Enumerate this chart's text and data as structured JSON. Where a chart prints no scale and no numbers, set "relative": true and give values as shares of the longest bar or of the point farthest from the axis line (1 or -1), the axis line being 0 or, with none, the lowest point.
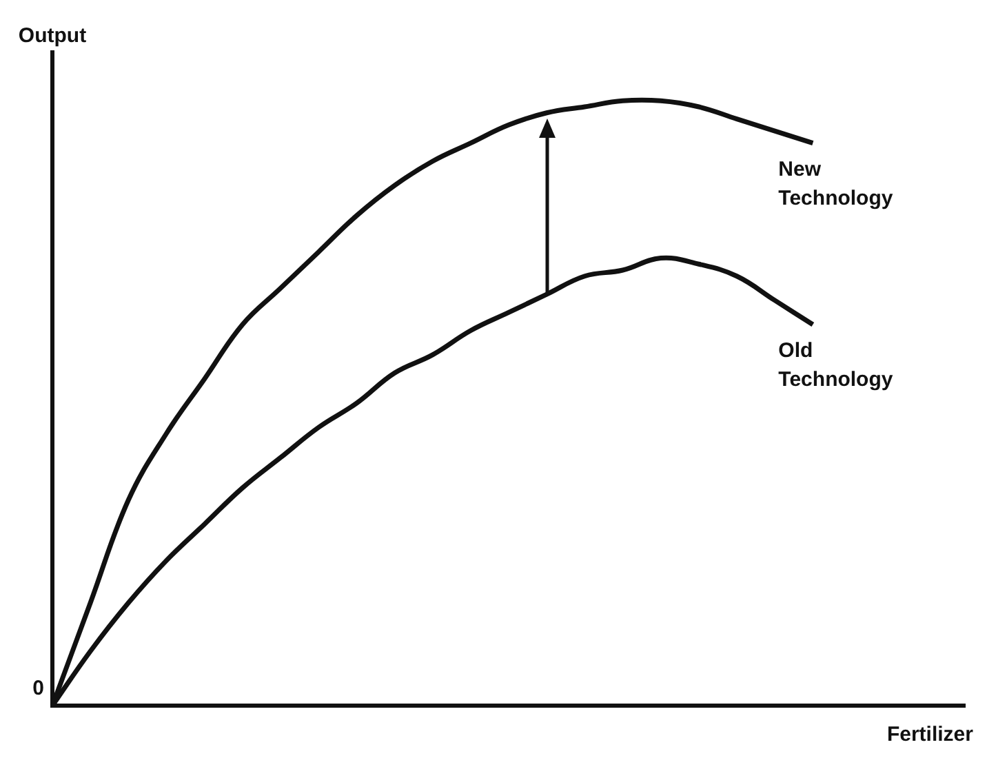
{
  "chart_data": {
    "type": "line",
    "relative": true,
    "ylabel": "Output",
    "xlabel": "Fertilizer",
    "annotations": [
      "0"
    ],
    "grid": false,
    "legend": false,
    "marker": "none",
    "line_style": "solid",
    "categories": [
      null,
      null,
      null,
      null,
      null,
      null,
      null,
      null,
      null,
      null,
      null,
      null,
      null,
      null,
      null,
      null,
      null,
      null,
      null,
      null,
      null,
      null,
      null,
      null,
      null
    ],
    "series": [
      {
        "name": "New Technology",
        "color": "#111111",
        "values": [
          0,
          0.17,
          0.34,
          0.45,
          0.54,
          0.63,
          0.69,
          0.75,
          0.81,
          0.86,
          0.9,
          0.93,
          0.96,
          0.98,
          0.99,
          1,
          1,
          0.99,
          0.97,
          0.95,
          0.93,
          null,
          null,
          null,
          null
        ]
      },
      {
        "name": "Old Technology",
        "color": "#111111",
        "values": [
          0,
          0.09,
          0.17,
          0.24,
          0.3,
          0.36,
          0.41,
          0.46,
          0.5,
          0.55,
          0.58,
          0.62,
          0.65,
          0.68,
          0.71,
          0.72,
          0.74,
          0.73,
          0.71,
          0.67,
          0.63,
          null,
          null,
          null,
          null
        ]
      }
    ]
  }
}
